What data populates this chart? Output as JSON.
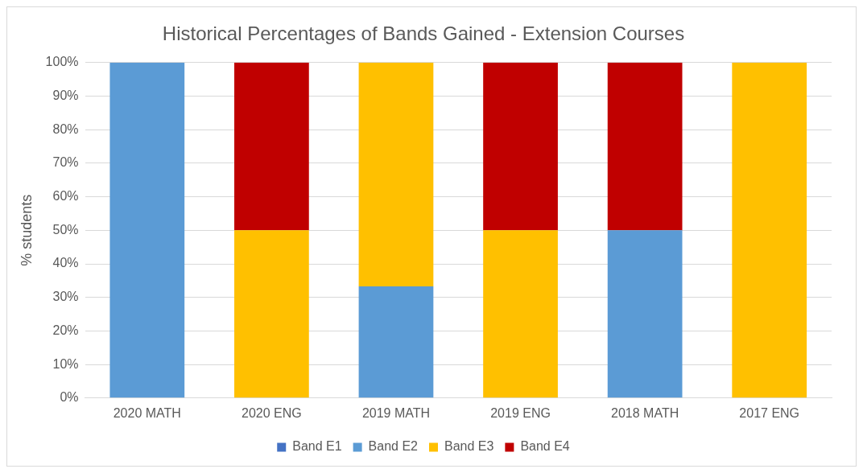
{
  "chart_data": {
    "type": "bar",
    "title": "Historical Percentages of Bands Gained - Extension Courses",
    "ylabel": "% students",
    "categories": [
      "2020 MATH",
      "2020 ENG",
      "2019 MATH",
      "2019 ENG",
      "2018 MATH",
      "2017 ENG"
    ],
    "series": [
      {
        "name": "Band E1",
        "color": "#4472c4",
        "values": [
          0,
          0,
          0,
          0,
          0,
          0
        ]
      },
      {
        "name": "Band E2",
        "color": "#5b9bd5",
        "values": [
          100,
          0,
          33.3,
          0,
          50,
          0
        ]
      },
      {
        "name": "Band E3",
        "color": "#ffc000",
        "values": [
          0,
          50,
          66.7,
          50,
          0,
          100
        ]
      },
      {
        "name": "Band E4",
        "color": "#c00000",
        "values": [
          0,
          50,
          0,
          50,
          50,
          0
        ]
      }
    ],
    "stacked": true,
    "ylim": [
      0,
      100
    ],
    "yticks": [
      {
        "value": 0,
        "label": "0%"
      },
      {
        "value": 10,
        "label": "10%"
      },
      {
        "value": 20,
        "label": "20%"
      },
      {
        "value": 30,
        "label": "30%"
      },
      {
        "value": 40,
        "label": "40%"
      },
      {
        "value": 50,
        "label": "50%"
      },
      {
        "value": 60,
        "label": "60%"
      },
      {
        "value": 70,
        "label": "70%"
      },
      {
        "value": 80,
        "label": "80%"
      },
      {
        "value": 90,
        "label": "90%"
      },
      {
        "value": 100,
        "label": "100%"
      }
    ],
    "grid": "y",
    "legend": "bottom"
  }
}
